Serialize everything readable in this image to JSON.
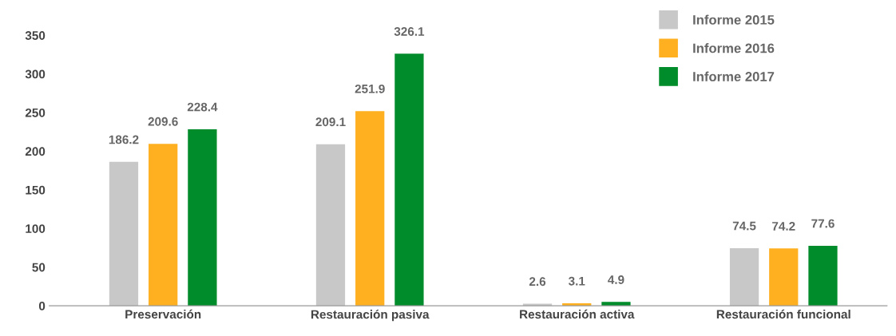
{
  "chart_data": {
    "type": "bar",
    "categories": [
      "Preservación",
      "Restauración pasiva",
      "Restauración activa",
      "Restauración funcional"
    ],
    "series": [
      {
        "name": "Informe 2015",
        "color": "#c8c8c8",
        "values": [
          186.2,
          209.1,
          2.6,
          74.5
        ]
      },
      {
        "name": "Informe 2016",
        "color": "#ffb020",
        "values": [
          209.6,
          251.9,
          3.1,
          74.2
        ]
      },
      {
        "name": "Informe 2017",
        "color": "#008c2a",
        "values": [
          228.4,
          326.1,
          4.9,
          77.6
        ]
      }
    ],
    "ylim": [
      0,
      350
    ],
    "yticks": [
      0,
      50,
      100,
      150,
      200,
      250,
      300,
      350
    ],
    "data_labels": true,
    "grid": false,
    "legend": "top right"
  }
}
